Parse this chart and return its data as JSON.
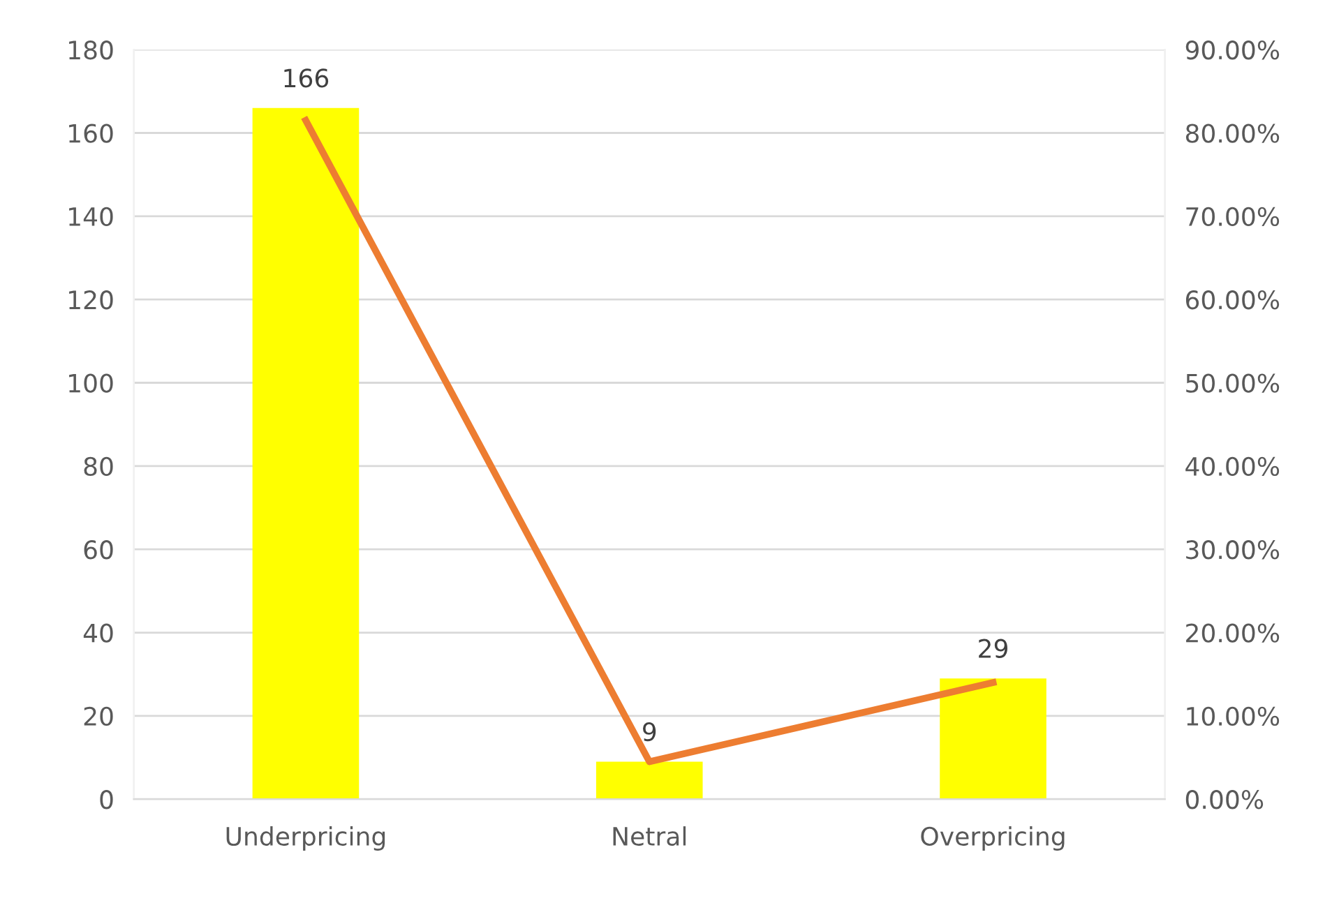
{
  "chart_data": {
    "type": "bar",
    "categories": [
      "Underpricing",
      "Netral",
      "Overpricing"
    ],
    "series": [
      {
        "color": "#ffff00",
        "values": [
          166,
          9,
          29
        ],
        "value_labels": [
          "166",
          "9",
          "29"
        ]
      },
      {
        "type": "line",
        "axis": "y2",
        "color": "#ed7d31",
        "values": [
          81.5,
          4.5,
          14
        ],
        "marker": "none",
        "line_style": "solid"
      }
    ],
    "ylim": [
      0,
      180
    ],
    "yticks": [
      0,
      20,
      40,
      60,
      80,
      100,
      120,
      140,
      160,
      180
    ],
    "y2lim": [
      0,
      90
    ],
    "y2ticks": [
      {
        "value": 0,
        "label": "0.00%"
      },
      {
        "value": 10,
        "label": "10.00%"
      },
      {
        "value": 20,
        "label": "20.00%"
      },
      {
        "value": 30,
        "label": "30.00%"
      },
      {
        "value": 40,
        "label": "40.00%"
      },
      {
        "value": 50,
        "label": "50.00%"
      },
      {
        "value": 60,
        "label": "60.00%"
      },
      {
        "value": 70,
        "label": "70.00%"
      },
      {
        "value": 80,
        "label": "80.00%"
      },
      {
        "value": 90,
        "label": "90.00%"
      }
    ],
    "grid": "y",
    "legend": false
  }
}
